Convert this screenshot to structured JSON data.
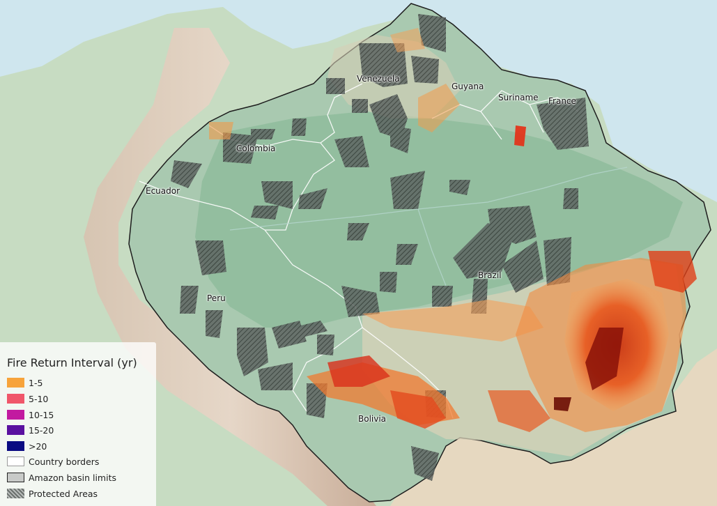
{
  "map": {
    "country_labels": [
      {
        "id": "venezuela",
        "text": "Venezuela"
      },
      {
        "id": "guyana",
        "text": "Guyana"
      },
      {
        "id": "suriname",
        "text": "Suriname"
      },
      {
        "id": "france",
        "text": "France"
      },
      {
        "id": "colombia",
        "text": "Colombia"
      },
      {
        "id": "ecuador",
        "text": "Ecuador"
      },
      {
        "id": "brazil",
        "text": "Brazil"
      },
      {
        "id": "peru",
        "text": "Peru"
      },
      {
        "id": "bolivia",
        "text": "Bolivia"
      }
    ]
  },
  "legend": {
    "title": "Fire Return Interval (yr)",
    "items": [
      {
        "label": "1-5",
        "color": "#f7a33b"
      },
      {
        "label": "5-10",
        "color": "#f0566a"
      },
      {
        "label": "10-15",
        "color": "#c21aa0"
      },
      {
        "label": "15-20",
        "color": "#5a10a0"
      },
      {
        "label": ">20",
        "color": "#0a0a82"
      },
      {
        "label": "Country borders",
        "color": "#ffffff"
      },
      {
        "label": "Amazon basin limits",
        "color": "#c8cac8"
      },
      {
        "label": "Protected Areas",
        "color": "hatch"
      }
    ]
  }
}
